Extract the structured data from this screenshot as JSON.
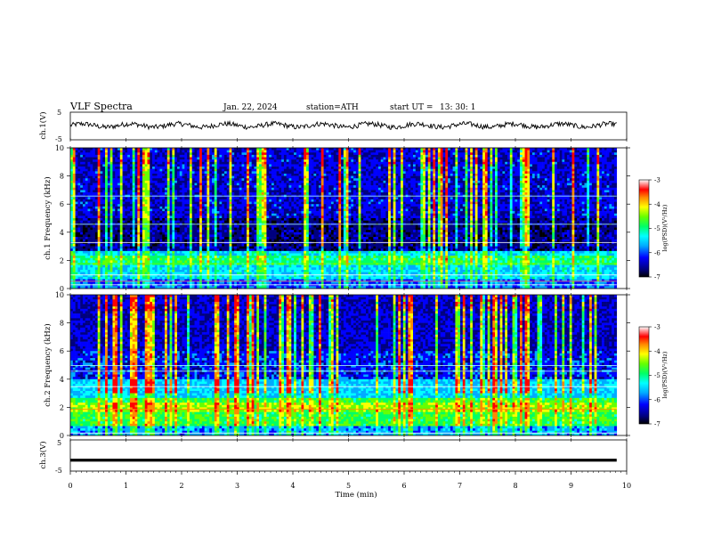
{
  "header": {
    "title": "VLF  Spectra",
    "date": "Jan. 22, 2024",
    "station": "station=ATH",
    "start_label": "start  UT  =",
    "start_time": "13: 30: 1"
  },
  "chart_data": [
    {
      "type": "line",
      "name": "ch1-waveform",
      "ylabel": "ch.1(V)",
      "ylim": [
        -5,
        5
      ],
      "yticks": [
        "5",
        "-5"
      ],
      "xlim": [
        0,
        10
      ],
      "x_extent": [
        0,
        9.82
      ],
      "description_level": 0.2,
      "color": "#000000"
    },
    {
      "type": "heatmap",
      "name": "ch1-spectrogram",
      "ylabel": "ch.1 Frequency (kHz)",
      "ylim": [
        0,
        10
      ],
      "yticks": [
        "0",
        "2",
        "4",
        "6",
        "8",
        "10"
      ],
      "xlim": [
        0,
        10
      ],
      "x_extent": [
        0,
        9.82
      ],
      "colorbar": {
        "label": "log(PSD)(V²/Hz)",
        "range": [
          -7,
          -3
        ],
        "ticks": [
          "-3",
          "-4",
          "-5",
          "-6",
          "-7"
        ]
      }
    },
    {
      "type": "heatmap",
      "name": "ch2-spectrogram",
      "ylabel": "ch.2 Frequency (kHz)",
      "ylim": [
        0,
        10
      ],
      "yticks": [
        "0",
        "2",
        "4",
        "6",
        "8",
        "10"
      ],
      "xlim": [
        0,
        10
      ],
      "x_extent": [
        0,
        9.82
      ],
      "colorbar": {
        "label": "log(PSD)(V²/Hz)",
        "range": [
          -7,
          -3
        ],
        "ticks": [
          "-3",
          "-4",
          "-5",
          "-6",
          "-7"
        ]
      }
    },
    {
      "type": "line",
      "name": "ch3-waveform",
      "ylabel": "ch.3(V)",
      "ylim": [
        -5,
        5
      ],
      "yticks": [
        "5",
        "-5"
      ],
      "xlim": [
        0,
        10
      ],
      "x_extent": [
        0,
        9.82
      ],
      "level": -1.5,
      "color": "#000000"
    }
  ],
  "xaxis": {
    "label": "Time  (min)",
    "ticks": [
      "0",
      "1",
      "2",
      "3",
      "4",
      "5",
      "6",
      "7",
      "8",
      "9",
      "10"
    ]
  },
  "colormap": [
    "#000000",
    "#00007f",
    "#0000ff",
    "#00aaff",
    "#00ffff",
    "#00ff66",
    "#66ff00",
    "#ffff00",
    "#ff8800",
    "#ff0000",
    "#ffffff"
  ]
}
